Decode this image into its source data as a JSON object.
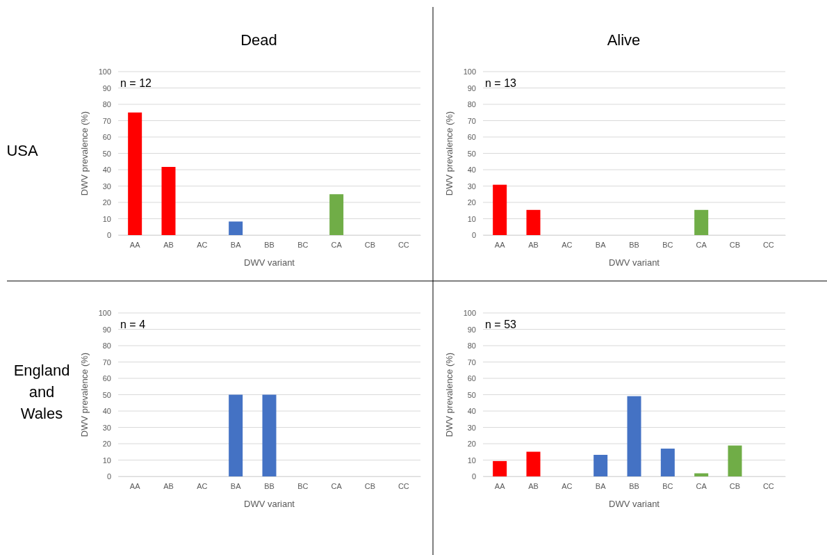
{
  "chart_data": [
    {
      "type": "bar",
      "title": "Dead",
      "xlabel": "DWV variant",
      "ylabel": "DWV prevalence (%)",
      "categories": [
        "AA",
        "AB",
        "AC",
        "BA",
        "BB",
        "BC",
        "CA",
        "CB",
        "CC"
      ],
      "values": [
        75,
        41.7,
        0,
        8.3,
        0,
        0,
        25,
        0,
        0
      ],
      "colors": [
        "#ff0000",
        "#ff0000",
        "#ff0000",
        "#4472c4",
        "#4472c4",
        "#4472c4",
        "#70ad47",
        "#70ad47",
        "#70ad47"
      ],
      "ylim": [
        0,
        100
      ],
      "yticks": [
        0,
        10,
        20,
        30,
        40,
        50,
        60,
        70,
        80,
        90,
        100
      ],
      "grid": "y",
      "annotations": [
        "n = 12",
        "USA"
      ]
    },
    {
      "type": "bar",
      "title": "Alive",
      "xlabel": "DWV variant",
      "ylabel": "DWV prevalence (%)",
      "categories": [
        "AA",
        "AB",
        "AC",
        "BA",
        "BB",
        "BC",
        "CA",
        "CB",
        "CC"
      ],
      "values": [
        30.8,
        15.4,
        0,
        0,
        0,
        0,
        15.4,
        0,
        0
      ],
      "colors": [
        "#ff0000",
        "#ff0000",
        "#ff0000",
        "#4472c4",
        "#4472c4",
        "#4472c4",
        "#70ad47",
        "#70ad47",
        "#70ad47"
      ],
      "ylim": [
        0,
        100
      ],
      "yticks": [
        0,
        10,
        20,
        30,
        40,
        50,
        60,
        70,
        80,
        90,
        100
      ],
      "grid": "y",
      "annotations": [
        "n = 13"
      ]
    },
    {
      "type": "bar",
      "xlabel": "DWV variant",
      "ylabel": "DWV prevalence (%)",
      "categories": [
        "AA",
        "AB",
        "AC",
        "BA",
        "BB",
        "BC",
        "CA",
        "CB",
        "CC"
      ],
      "values": [
        0,
        0,
        0,
        50,
        50,
        0,
        0,
        0,
        0
      ],
      "colors": [
        "#ff0000",
        "#ff0000",
        "#ff0000",
        "#4472c4",
        "#4472c4",
        "#4472c4",
        "#70ad47",
        "#70ad47",
        "#70ad47"
      ],
      "ylim": [
        0,
        100
      ],
      "yticks": [
        0,
        10,
        20,
        30,
        40,
        50,
        60,
        70,
        80,
        90,
        100
      ],
      "grid": "y",
      "annotations": [
        "n = 4",
        "England and Wales"
      ]
    },
    {
      "type": "bar",
      "xlabel": "DWV variant",
      "ylabel": "DWV prevalence (%)",
      "categories": [
        "AA",
        "AB",
        "AC",
        "BA",
        "BB",
        "BC",
        "CA",
        "CB",
        "CC"
      ],
      "values": [
        9.4,
        15.1,
        0,
        13.2,
        49.1,
        17,
        1.9,
        18.9,
        0
      ],
      "colors": [
        "#ff0000",
        "#ff0000",
        "#ff0000",
        "#4472c4",
        "#4472c4",
        "#4472c4",
        "#70ad47",
        "#70ad47",
        "#70ad47"
      ],
      "ylim": [
        0,
        100
      ],
      "yticks": [
        0,
        10,
        20,
        30,
        40,
        50,
        60,
        70,
        80,
        90,
        100
      ],
      "grid": "y",
      "annotations": [
        "n = 53"
      ]
    }
  ]
}
